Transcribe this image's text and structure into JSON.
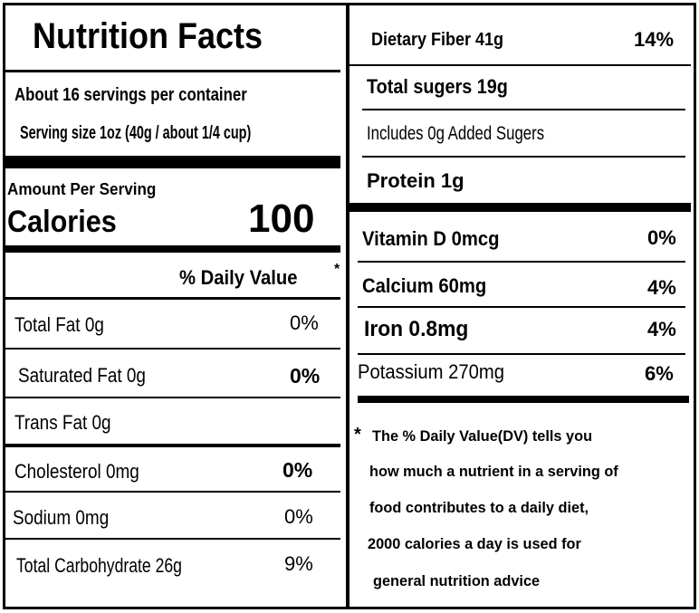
{
  "title": "Nutrition Facts",
  "servings_per_container": "About 16 servings per container",
  "serving_size": "Serving size 1oz (40g / about 1/4 cup)",
  "amount_per_serving": "Amount Per Serving",
  "calories_label": "Calories",
  "calories_value": "100",
  "daily_value_header": "% Daily Value",
  "daily_value_asterisk": "*",
  "left_rows": [
    {
      "label": "Total Fat  0g",
      "pct": "0%"
    },
    {
      "label": "Saturated Fat 0g",
      "pct": "0%"
    },
    {
      "label": "Trans Fat 0g",
      "pct": ""
    },
    {
      "label": "Cholesterol  0mg",
      "pct": "0%"
    },
    {
      "label": "Sodium  0mg",
      "pct": "0%"
    },
    {
      "label": "Total Carbohydrate  26g",
      "pct": "9%"
    }
  ],
  "right_rows": [
    {
      "label": "Dietary Fiber  41g",
      "pct": "14%"
    },
    {
      "label": "Total sugers  19g",
      "pct": ""
    },
    {
      "label": "Includes 0g Added Sugers",
      "pct": ""
    },
    {
      "label": "Protein  1g",
      "pct": ""
    },
    {
      "label": "Vitamin D 0mcg",
      "pct": "0%"
    },
    {
      "label": "Calcium  60mg",
      "pct": "4%"
    },
    {
      "label": "Iron 0.8mg",
      "pct": "4%"
    },
    {
      "label": "Potassium  270mg",
      "pct": "6%"
    }
  ],
  "footnote": {
    "asterisk": "*",
    "lines": [
      "The % Daily Value(DV)  tells you",
      "how much a nutrient in a serving of",
      "food contributes to a daily diet,",
      "2000 calories a day is used for",
      "general nutrition advice"
    ]
  }
}
